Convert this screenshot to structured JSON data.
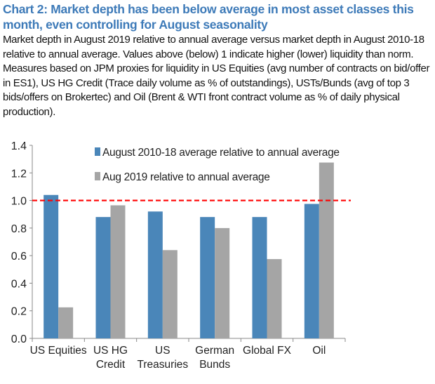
{
  "title": "Chart 2: Market depth has been below average in most asset classes this month, even controlling for August seasonality",
  "description": "Market depth in August 2019 relative to annual average versus market depth in August 2010-18 relative to annual average. Values above (below) 1 indicate higher (lower) liquidity than norm. Measures based on JPM proxies for liquidity in US Equities (avg number of contracts on bid/offer in ES1), US HG Credit (Trace daily volume as % of outstandings), USTs/Bunds (avg of top 3 bids/offers on Brokertec) and Oil (Brent & WTI front contract volume as % of daily physical production).",
  "chart_data": {
    "type": "bar",
    "categories": [
      [
        "US Equities"
      ],
      [
        "US HG",
        "Credit"
      ],
      [
        "US",
        "Treasuries"
      ],
      [
        "German",
        "Bunds"
      ],
      [
        "Global FX"
      ],
      [
        "Oil"
      ]
    ],
    "series": [
      {
        "name": "August 2010-18 average relative to annual average",
        "color": "#4a86b9",
        "values": [
          1.04,
          0.88,
          0.92,
          0.88,
          0.88,
          0.975
        ]
      },
      {
        "name": "Aug 2019 relative to annual average",
        "color": "#a5a5a5",
        "values": [
          0.225,
          0.965,
          0.64,
          0.8,
          0.575,
          1.275
        ]
      }
    ],
    "ylim": [
      0,
      1.4
    ],
    "yticks": [
      "0.0",
      "0.2",
      "0.4",
      "0.6",
      "0.8",
      "1.0",
      "1.2",
      "1.4"
    ],
    "reference_line": {
      "y": 1.0,
      "color": "#ff0000",
      "style": "dashed"
    },
    "legend": "top",
    "grid": false
  }
}
